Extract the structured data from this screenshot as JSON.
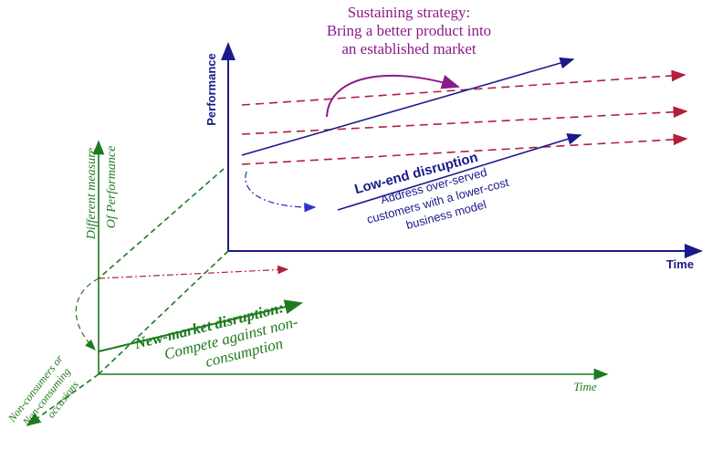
{
  "sustaining": {
    "lines": [
      "Sustaining strategy:",
      "Bring a better product into",
      "an established market"
    ]
  },
  "top_axes": {
    "y_label": "Performance",
    "x_label": "Time"
  },
  "low_end": {
    "title": "Low-end disruption",
    "lines": [
      "Address over-served",
      "customers with a lower-cost",
      "business model"
    ]
  },
  "third_axis": {
    "lines": [
      "Different measure",
      "Of Performance"
    ]
  },
  "new_market": {
    "title": "New-market disruption:",
    "lines": [
      "Compete against non-",
      "consumption"
    ]
  },
  "bottom_axes": {
    "x_label": "Time",
    "depth_lines": [
      "Non-consumers or",
      "Non-consuming",
      "occasions"
    ]
  }
}
